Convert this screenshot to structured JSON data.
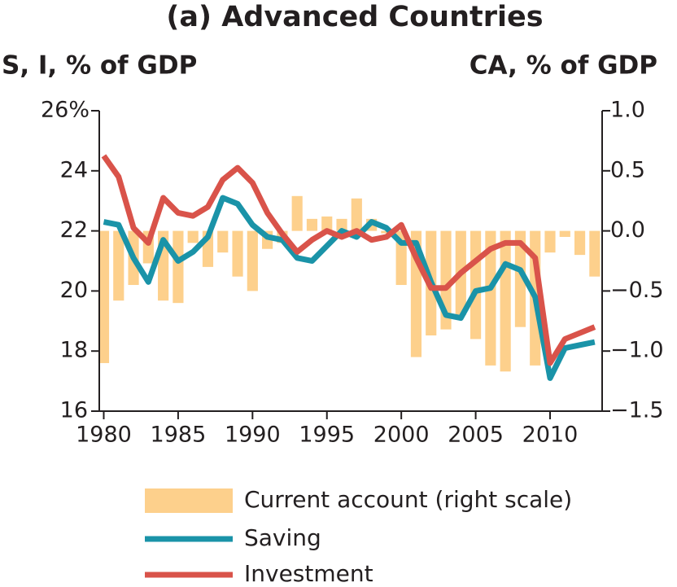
{
  "chart_data": {
    "type": "bar_line",
    "title": "(a) Advanced Countries",
    "y_label": "S, I, % of GDP",
    "y2_label": "CA, % of GDP",
    "x": [
      1980,
      1981,
      1982,
      1983,
      1984,
      1985,
      1986,
      1987,
      1988,
      1989,
      1990,
      1991,
      1992,
      1993,
      1994,
      1995,
      1996,
      1997,
      1998,
      1999,
      2000,
      2001,
      2002,
      2003,
      2004,
      2005,
      2006,
      2007,
      2008,
      2009,
      2010,
      2011,
      2012,
      2013
    ],
    "xlim": [
      1979.7,
      2013.5
    ],
    "xticks": [
      1980,
      1985,
      1990,
      1995,
      2000,
      2005,
      2010
    ],
    "ylim": [
      16,
      26
    ],
    "yticks": [
      16,
      18,
      20,
      22,
      24,
      {
        "value": 26,
        "label": "26%"
      }
    ],
    "y2lim": [
      -1.5,
      1.0
    ],
    "y2ticks": [
      {
        "value": -1.5,
        "label": "−1.5"
      },
      {
        "value": -1.0,
        "label": "−1.0"
      },
      {
        "value": -0.5,
        "label": "−0.5"
      },
      {
        "value": 0,
        "label": "0.0"
      },
      0.5,
      {
        "value": 1.0,
        "label": "1.0"
      }
    ],
    "series": [
      {
        "name": "Current account (right scale)",
        "color": "#fdd08c",
        "axis": "y2",
        "kind": "bar",
        "values": [
          -1.1,
          -0.58,
          -0.45,
          -0.27,
          -0.58,
          -0.6,
          -0.1,
          -0.3,
          -0.18,
          -0.38,
          -0.5,
          -0.15,
          -0.1,
          0.29,
          0.1,
          0.12,
          0.1,
          0.27,
          0.1,
          -0.02,
          -0.45,
          -1.05,
          -0.87,
          -0.82,
          -0.7,
          -0.9,
          -1.12,
          -1.17,
          -0.8,
          -1.12,
          -0.18,
          -0.05,
          -0.2,
          -0.38
        ]
      },
      {
        "name": "Saving",
        "color": "#1a93a8",
        "kind": "line",
        "values": [
          22.3,
          22.2,
          21.1,
          20.3,
          21.7,
          21.0,
          21.3,
          21.8,
          23.1,
          22.9,
          22.2,
          21.8,
          21.7,
          21.1,
          21.0,
          21.5,
          22.0,
          21.8,
          22.3,
          22.1,
          21.6,
          21.6,
          20.3,
          19.2,
          19.1,
          20.0,
          20.1,
          20.9,
          20.7,
          19.8,
          17.1,
          18.1,
          18.2,
          18.3
        ]
      },
      {
        "name": "Investment",
        "color": "#d9534a",
        "kind": "line",
        "values": [
          24.5,
          23.8,
          22.1,
          21.6,
          23.1,
          22.6,
          22.5,
          22.8,
          23.7,
          24.1,
          23.6,
          22.6,
          21.9,
          21.3,
          21.7,
          22.0,
          21.8,
          22.0,
          21.7,
          21.8,
          22.2,
          21.1,
          20.1,
          20.1,
          20.6,
          21.0,
          21.4,
          21.6,
          21.6,
          21.1,
          17.6,
          18.4,
          18.6,
          18.8
        ]
      }
    ]
  }
}
